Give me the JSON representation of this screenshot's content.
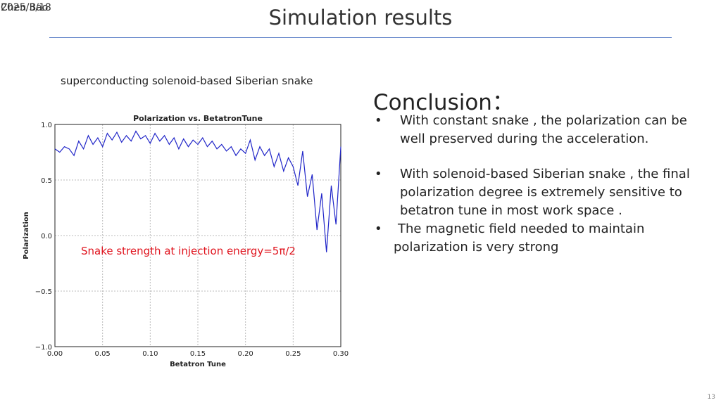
{
  "header": {
    "date": "2025/3/18",
    "author": "Chen Bao",
    "title": "Simulation results"
  },
  "chart_caption": "superconducting solenoid-based Siberian snake",
  "annotation": "Snake strength at injection energy=5π/2",
  "conclusion": {
    "heading": "Conclusion：",
    "bullet_char": "•",
    "bullets": [
      {
        "lines": [
          "With constant snake , the polarization can be",
          "well preserved during the acceleration."
        ]
      },
      {
        "lines": [
          "With solenoid-based Siberian snake , the final",
          "polarization degree is extremely sensitive to",
          "betatron tune in most work space ."
        ]
      },
      {
        "lines": [
          "The magnetic field needed to maintain",
          "polarization is very strong"
        ]
      }
    ]
  },
  "page_number": "13",
  "chart_data": {
    "type": "line",
    "title": "Polarization vs. BetatronTune",
    "xlabel": "Betatron Tune",
    "ylabel": "Polarization",
    "xlim": [
      0.0,
      0.3
    ],
    "ylim": [
      -1.0,
      1.0
    ],
    "xticks": [
      "0.00",
      "0.05",
      "0.10",
      "0.15",
      "0.20",
      "0.25",
      "0.30"
    ],
    "yticks": [
      "1.0",
      "0.5",
      "0.0",
      "−0.5",
      "−1.0"
    ],
    "grid": true,
    "line_color": "#1f24c8",
    "series": [
      {
        "x": [
          0.0,
          0.005,
          0.01,
          0.015,
          0.02,
          0.025,
          0.03,
          0.035,
          0.04,
          0.045,
          0.05,
          0.055,
          0.06,
          0.065,
          0.07,
          0.075,
          0.08,
          0.085,
          0.09,
          0.095,
          0.1,
          0.105,
          0.11,
          0.115,
          0.12,
          0.125,
          0.13,
          0.135,
          0.14,
          0.145,
          0.15,
          0.155,
          0.16,
          0.165,
          0.17,
          0.175,
          0.18,
          0.185,
          0.19,
          0.195,
          0.2,
          0.205,
          0.21,
          0.215,
          0.22,
          0.225,
          0.23,
          0.235,
          0.24,
          0.245,
          0.25,
          0.255,
          0.26,
          0.265,
          0.27,
          0.275,
          0.28,
          0.285,
          0.29,
          0.295,
          0.3
        ],
        "y": [
          0.78,
          0.75,
          0.8,
          0.78,
          0.72,
          0.85,
          0.78,
          0.9,
          0.82,
          0.88,
          0.8,
          0.92,
          0.86,
          0.93,
          0.84,
          0.9,
          0.85,
          0.94,
          0.87,
          0.9,
          0.83,
          0.92,
          0.85,
          0.9,
          0.82,
          0.88,
          0.78,
          0.87,
          0.8,
          0.86,
          0.82,
          0.88,
          0.8,
          0.85,
          0.78,
          0.82,
          0.76,
          0.8,
          0.72,
          0.78,
          0.74,
          0.86,
          0.68,
          0.8,
          0.72,
          0.78,
          0.62,
          0.74,
          0.58,
          0.7,
          0.62,
          0.45,
          0.76,
          0.35,
          0.55,
          0.05,
          0.38,
          -0.15,
          0.45,
          0.1,
          0.8
        ]
      }
    ]
  }
}
